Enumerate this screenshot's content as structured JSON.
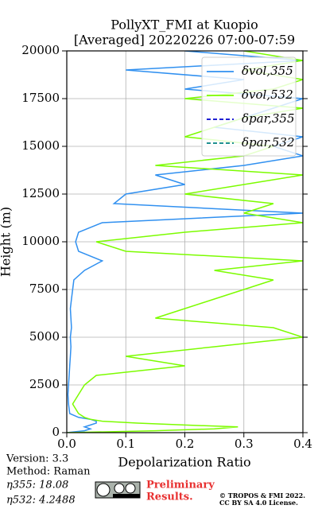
{
  "chart_data": {
    "type": "line",
    "title": "PollyXT_FMI at Kuopio",
    "subtitle": "[Averaged] 20220226 07:00-07:59",
    "x_label": "Depolarization Ratio",
    "y_label": "Height (m)",
    "heights": [
      0,
      100,
      200,
      300,
      400,
      500,
      600,
      700,
      800,
      1000,
      1500,
      2000,
      2500,
      3000,
      3500,
      4000,
      4500,
      5000,
      5500,
      6000,
      6500,
      7000,
      7500,
      8000,
      8500,
      9000,
      9500,
      10000,
      10500,
      11000,
      11500,
      12000,
      12500,
      13000,
      13500,
      14000,
      14500,
      15000,
      15500,
      16000,
      16500,
      17000,
      17500,
      18000,
      18500,
      19000,
      19500,
      20000
    ],
    "series": [
      {
        "name": "δvol,355",
        "color": "#3090f0",
        "dash": "solid",
        "values": [
          0.0,
          0.03,
          0.04,
          0.03,
          0.04,
          0.05,
          0.05,
          0.04,
          0.02,
          0.005,
          0.003,
          0.002,
          0.003,
          0.004,
          0.005,
          0.006,
          0.007,
          0.006,
          0.008,
          0.007,
          0.006,
          0.008,
          0.01,
          0.012,
          0.03,
          0.06,
          0.02,
          0.015,
          0.02,
          0.06,
          0.4,
          0.08,
          0.1,
          0.2,
          0.15,
          0.3,
          0.4,
          0.35,
          0.4,
          0.25,
          0.3,
          0.35,
          0.4,
          0.2,
          0.3,
          0.1,
          0.4,
          0.2
        ]
      },
      {
        "name": "δvol,532",
        "color": "#7cfc00",
        "dash": "solid",
        "values": [
          0.0,
          0.15,
          0.25,
          0.29,
          0.2,
          0.12,
          0.06,
          0.04,
          0.03,
          0.02,
          0.01,
          0.02,
          0.03,
          0.05,
          0.2,
          0.1,
          0.25,
          0.4,
          0.35,
          0.15,
          0.2,
          0.25,
          0.3,
          0.35,
          0.25,
          0.4,
          0.1,
          0.05,
          0.2,
          0.4,
          0.3,
          0.35,
          0.2,
          0.3,
          0.4,
          0.15,
          0.3,
          0.35,
          0.2,
          0.25,
          0.3,
          0.4,
          0.2,
          0.35,
          0.4,
          0.3,
          0.4,
          0.3
        ]
      },
      {
        "name": "δpar,355",
        "color": "#0000cd",
        "dash": "dashed",
        "values": [
          null,
          null,
          null,
          null,
          null,
          null,
          null,
          null,
          null,
          null,
          null,
          null,
          null,
          null,
          null,
          null,
          null,
          null,
          null,
          null,
          null,
          null,
          null,
          null,
          null,
          null,
          null,
          null,
          null,
          null,
          null,
          null,
          null,
          null,
          null,
          null,
          null,
          null,
          null,
          null,
          null,
          null,
          null,
          null,
          null,
          null,
          null,
          null
        ]
      },
      {
        "name": "δpar,532",
        "color": "#008080",
        "dash": "dashed",
        "values": [
          null,
          null,
          null,
          null,
          null,
          null,
          null,
          null,
          null,
          null,
          null,
          null,
          null,
          null,
          null,
          null,
          null,
          null,
          null,
          null,
          null,
          null,
          null,
          null,
          null,
          null,
          null,
          null,
          null,
          null,
          null,
          null,
          null,
          null,
          null,
          null,
          null,
          null,
          null,
          null,
          null,
          null,
          null,
          null,
          null,
          null,
          null,
          null
        ]
      }
    ],
    "xlim": [
      0,
      0.4
    ],
    "xticks": [
      {
        "value": 0,
        "label": "0.0"
      },
      0.1,
      0.2,
      0.3,
      0.4
    ],
    "ylim": [
      0,
      20000
    ],
    "yticks": [
      0,
      2500,
      5000,
      7500,
      10000,
      12500,
      15000,
      17500,
      20000
    ],
    "grid": true,
    "legend": "upper right"
  },
  "footer": {
    "version": "Version: 3.3",
    "method": "Method: Raman",
    "eta355": "η355:  18.08",
    "eta532": "η532: 4.2488",
    "preliminary": [
      "Preliminary",
      "Results."
    ],
    "copyright": [
      "© TROPOS & FMI 2022.",
      "CC BY SA 4.0 License."
    ]
  }
}
